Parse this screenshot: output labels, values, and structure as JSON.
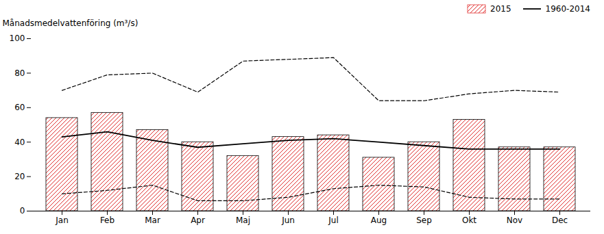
{
  "chart_data": {
    "type": "bar",
    "ylabel": "Månadsmedelvattenföring (m³/s)",
    "categories": [
      "Jan",
      "Feb",
      "Mar",
      "Apr",
      "Maj",
      "Jun",
      "Jul",
      "Aug",
      "Sep",
      "Okt",
      "Nov",
      "Dec"
    ],
    "series": [
      {
        "name": "2015",
        "type": "bar",
        "color": "#e03030",
        "values": [
          54,
          57,
          47,
          40,
          32,
          43,
          44,
          31,
          40,
          53,
          37,
          37
        ]
      },
      {
        "name": "1960-2014",
        "type": "line",
        "line_style": "solid",
        "color": "#000000",
        "values": [
          43,
          46,
          41,
          37,
          39,
          41,
          42,
          40,
          38,
          36,
          36,
          36
        ]
      },
      {
        "type": "line",
        "line_style": "dashed",
        "color": "#000000",
        "values": [
          70,
          79,
          80,
          69,
          87,
          88,
          89,
          64,
          64,
          68,
          70,
          69
        ]
      },
      {
        "type": "line",
        "line_style": "dashed",
        "color": "#000000",
        "values": [
          10,
          12,
          15,
          6,
          6,
          8,
          13,
          15,
          14,
          8,
          7,
          7
        ]
      }
    ],
    "ylim": [
      0,
      100
    ],
    "yticks": [
      0,
      20,
      40,
      60,
      80,
      100
    ],
    "grid": false,
    "legend": "upper right"
  }
}
